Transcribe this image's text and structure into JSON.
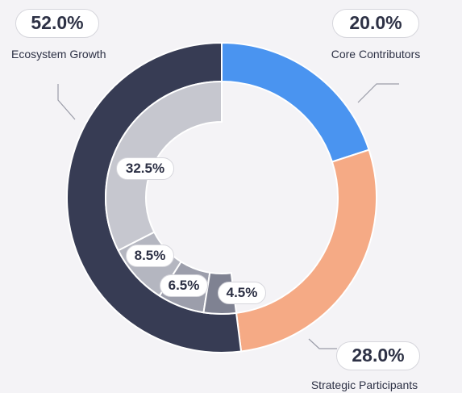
{
  "chart_data": {
    "type": "pie",
    "outer_ring": [
      {
        "name": "Ecosystem Growth",
        "value": 52.0,
        "label": "52.0%",
        "color": "#373c54"
      },
      {
        "name": "Core Contributors",
        "value": 20.0,
        "label": "20.0%",
        "color": "#4a94f0"
      },
      {
        "name": "Strategic Participants",
        "value": 28.0,
        "label": "28.0%",
        "color": "#f5aa85"
      }
    ],
    "inner_ring": [
      {
        "value": 32.5,
        "label": "32.5%",
        "color": "#c6c7cf"
      },
      {
        "value": 8.5,
        "label": "8.5%",
        "color": "#b4b6c0"
      },
      {
        "value": 6.5,
        "label": "6.5%",
        "color": "#9c9eab"
      },
      {
        "value": 4.5,
        "label": "4.5%",
        "color": "#7f8292"
      }
    ]
  }
}
